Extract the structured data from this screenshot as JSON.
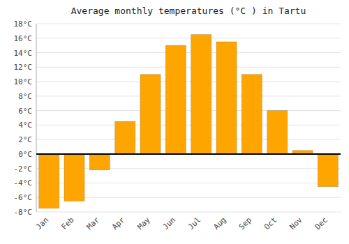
{
  "chart_data": {
    "type": "bar",
    "title": "Average monthly temperatures (°C ) in Tartu",
    "categories": [
      "Jan",
      "Feb",
      "Mar",
      "Apr",
      "May",
      "Jun",
      "Jul",
      "Aug",
      "Sep",
      "Oct",
      "Nov",
      "Dec"
    ],
    "values": [
      -7.5,
      -6.5,
      -2.2,
      4.5,
      11.0,
      15.0,
      16.5,
      15.5,
      11.0,
      6.0,
      0.5,
      -4.5
    ],
    "color": "#FFA500",
    "ylim": [
      -8,
      18
    ],
    "yticks": [
      {
        "value": -8,
        "label": "-8°C"
      },
      {
        "value": -6,
        "label": "-6°C"
      },
      {
        "value": -4,
        "label": "-4°C"
      },
      {
        "value": -2,
        "label": "-2°C"
      },
      {
        "value": 0,
        "label": "0°C"
      },
      {
        "value": 2,
        "label": "2°C"
      },
      {
        "value": 4,
        "label": "4°C"
      },
      {
        "value": 6,
        "label": "6°C"
      },
      {
        "value": 8,
        "label": "8°C"
      },
      {
        "value": 10,
        "label": "10°C"
      },
      {
        "value": 12,
        "label": "12°C"
      },
      {
        "value": 14,
        "label": "14°C"
      },
      {
        "value": 16,
        "label": "16°C"
      },
      {
        "value": 18,
        "label": "18°C"
      }
    ],
    "grid": true
  }
}
